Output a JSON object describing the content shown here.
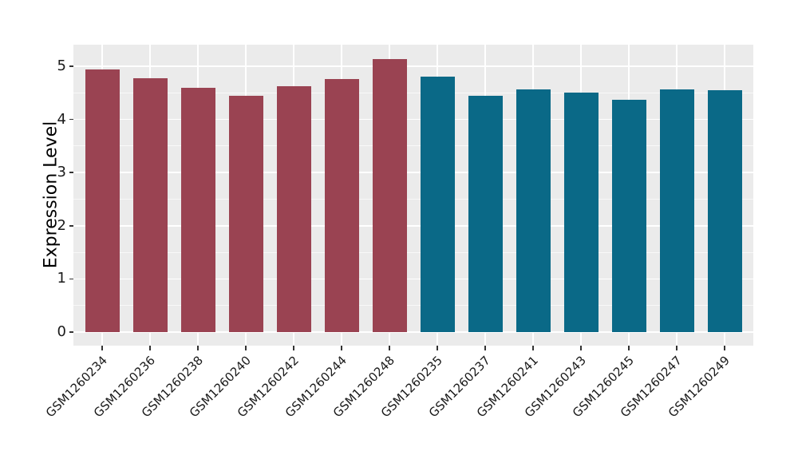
{
  "figure": {
    "background": "#FFFFFF"
  },
  "chart_data": {
    "type": "bar",
    "title": "",
    "xlabel": "",
    "ylabel": "Expression Level",
    "categories": [
      "GSM1260234",
      "GSM1260236",
      "GSM1260238",
      "GSM1260240",
      "GSM1260242",
      "GSM1260244",
      "GSM1260248",
      "GSM1260235",
      "GSM1260237",
      "GSM1260241",
      "GSM1260243",
      "GSM1260245",
      "GSM1260247",
      "GSM1260249"
    ],
    "values": [
      4.94,
      4.77,
      4.6,
      4.44,
      4.63,
      4.76,
      5.13,
      4.8,
      4.44,
      4.57,
      4.5,
      4.37,
      4.57,
      4.55
    ],
    "group_index": [
      0,
      0,
      0,
      0,
      0,
      0,
      0,
      1,
      1,
      1,
      1,
      1,
      1,
      1
    ],
    "group_colors": [
      "#9A4352",
      "#0A6987"
    ],
    "yticks": [
      0,
      1,
      2,
      3,
      4,
      5
    ],
    "ytick_labels": [
      "0",
      "1",
      "2",
      "3",
      "4",
      "5"
    ],
    "minor_yticks": [
      0.5,
      1.5,
      2.5,
      3.5,
      4.5
    ],
    "ylim": [
      -0.26,
      5.41
    ],
    "grid": {
      "horizontal": "major+minor",
      "vertical": "major-at-category-centers"
    },
    "legend_position": "none",
    "style": {
      "panel_background": "#EBEBEB",
      "major_gridline_color": "#FFFFFF",
      "minor_gridline_color": "rgba(255,255,255,0.65)",
      "tick_color": "#333333",
      "tick_label_color": "#1A1A1A",
      "axis_title_color": "#000000"
    }
  }
}
